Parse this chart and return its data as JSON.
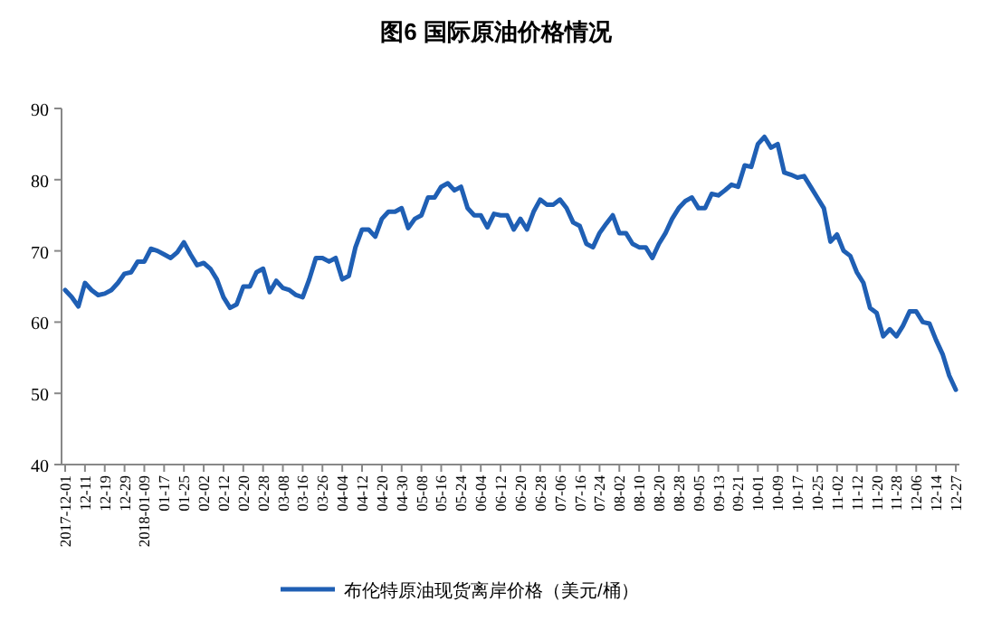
{
  "chart_data": {
    "type": "line",
    "title": "图6  国际原油价格情况",
    "categories": [
      "2017-12-01",
      null,
      null,
      "12-11",
      null,
      null,
      "12-19",
      null,
      null,
      "12-29",
      null,
      null,
      "2018-01-09",
      null,
      null,
      "01-17",
      null,
      null,
      "01-25",
      null,
      null,
      "02-02",
      null,
      null,
      "02-12",
      null,
      null,
      "02-20",
      null,
      null,
      "02-28",
      null,
      null,
      "03-08",
      null,
      null,
      "03-16",
      null,
      null,
      "03-26",
      null,
      null,
      "04-04",
      null,
      null,
      "04-12",
      null,
      null,
      "04-20",
      null,
      null,
      "04-30",
      null,
      null,
      "05-08",
      null,
      null,
      "05-16",
      null,
      null,
      "05-24",
      null,
      null,
      "06-04",
      null,
      null,
      "06-12",
      null,
      null,
      "06-20",
      null,
      null,
      "06-28",
      null,
      null,
      "07-06",
      null,
      null,
      "07-16",
      null,
      null,
      "07-24",
      null,
      null,
      "08-02",
      null,
      null,
      "08-10",
      null,
      null,
      "08-20",
      null,
      null,
      "08-28",
      null,
      null,
      "09-05",
      null,
      null,
      "09-13",
      null,
      null,
      "09-21",
      null,
      null,
      "10-01",
      null,
      null,
      "10-09",
      null,
      null,
      "10-17",
      null,
      null,
      "10-25",
      null,
      null,
      "11-02",
      null,
      null,
      "11-12",
      null,
      null,
      "11-20",
      null,
      null,
      "11-28",
      null,
      null,
      "12-06",
      null,
      null,
      "12-14",
      null,
      null,
      "12-27"
    ],
    "series": [
      {
        "name": "布伦特原油现货离岸价格（美元/桶）",
        "color": "#1f5fb4",
        "values": [
          64.5,
          63.5,
          62.2,
          65.5,
          64.5,
          63.8,
          64,
          64.5,
          65.5,
          66.8,
          67,
          68.5,
          68.5,
          70.3,
          70,
          69.5,
          69,
          69.8,
          71.2,
          69.5,
          68,
          68.3,
          67.5,
          66,
          63.5,
          62,
          62.5,
          65,
          65,
          67,
          67.5,
          64.2,
          65.8,
          64.8,
          64.5,
          63.8,
          63.5,
          66,
          69,
          69,
          68.5,
          69,
          66,
          66.5,
          70.5,
          73,
          73,
          72,
          74.5,
          75.5,
          75.5,
          76,
          73.2,
          74.5,
          75,
          77.5,
          77.5,
          79,
          79.5,
          78.5,
          79,
          76,
          75,
          75,
          73.3,
          75.2,
          75,
          75,
          73,
          74.5,
          73,
          75.5,
          77.2,
          76.5,
          76.5,
          77.2,
          76,
          74,
          73.5,
          71,
          70.5,
          72.5,
          73.8,
          75,
          72.5,
          72.5,
          71,
          70.5,
          70.5,
          69,
          71,
          72.5,
          74.5,
          76,
          77,
          77.5,
          76,
          76,
          78,
          77.8,
          78.5,
          79.3,
          79,
          82,
          81.8,
          85,
          86,
          84.5,
          85,
          81,
          80.7,
          80.3,
          80.5,
          79,
          77.5,
          76,
          71.3,
          72.3,
          70,
          69.3,
          67,
          65.5,
          62,
          61.3,
          58,
          59,
          58,
          59.5,
          61.5,
          61.5,
          60,
          59.8,
          57.5,
          55.5,
          52.5,
          50.5
        ]
      }
    ],
    "ylim": [
      40,
      90
    ],
    "yticks": [
      40,
      50,
      60,
      70,
      80,
      90
    ],
    "legend": "bottom"
  }
}
